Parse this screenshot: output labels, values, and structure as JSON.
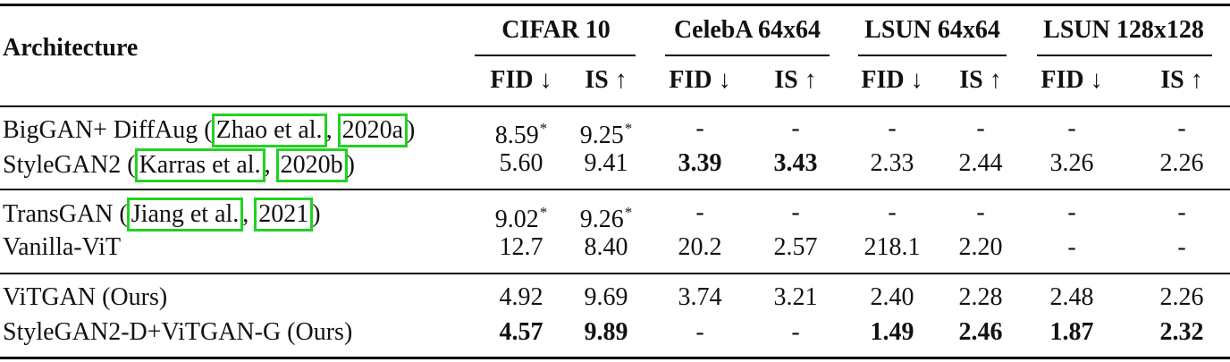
{
  "header": {
    "architecture": "Architecture",
    "groups": [
      "CIFAR 10",
      "CelebA 64x64",
      "LSUN 64x64",
      "LSUN 128x128"
    ],
    "metrics": [
      "FID ↓",
      "IS ↑",
      "FID ↓",
      "IS ↑",
      "FID ↓",
      "IS ↑",
      "FID ↓",
      "IS ↑"
    ]
  },
  "rows": [
    {
      "name_pre": "BigGAN+ DiffAug (",
      "cite_authors": "Zhao et al.",
      "cite_sep": ", ",
      "cite_year": "2020a",
      "name_post": ")",
      "values": [
        "8.59",
        "9.25",
        "-",
        "-",
        "-",
        "-",
        "-",
        "-"
      ],
      "marks": [
        "*",
        "*",
        "",
        "",
        "",
        "",
        "",
        ""
      ],
      "bold": [
        false,
        false,
        false,
        false,
        false,
        false,
        false,
        false
      ]
    },
    {
      "name_pre": "StyleGAN2 (",
      "cite_authors": "Karras et al.",
      "cite_sep": ", ",
      "cite_year": "2020b",
      "name_post": ")",
      "values": [
        "5.60",
        "9.41",
        "3.39",
        "3.43",
        "2.33",
        "2.44",
        "3.26",
        "2.26"
      ],
      "marks": [
        "",
        "",
        "",
        "",
        "",
        "",
        "",
        ""
      ],
      "bold": [
        false,
        false,
        true,
        true,
        false,
        false,
        false,
        false
      ]
    },
    {
      "name_pre": "TransGAN (",
      "cite_authors": "Jiang et al.",
      "cite_sep": ", ",
      "cite_year": "2021",
      "name_post": ")",
      "values": [
        "9.02",
        "9.26",
        "-",
        "-",
        "-",
        "-",
        "-",
        "-"
      ],
      "marks": [
        "*",
        "*",
        "",
        "",
        "",
        "",
        "",
        ""
      ],
      "bold": [
        false,
        false,
        false,
        false,
        false,
        false,
        false,
        false
      ]
    },
    {
      "name": "Vanilla-ViT",
      "values": [
        "12.7",
        "8.40",
        "20.2",
        "2.57",
        "218.1",
        "2.20",
        "-",
        "-"
      ],
      "marks": [
        "",
        "",
        "",
        "",
        "",
        "",
        "",
        ""
      ],
      "bold": [
        false,
        false,
        false,
        false,
        false,
        false,
        false,
        false
      ]
    },
    {
      "name": "ViTGAN (Ours)",
      "values": [
        "4.92",
        "9.69",
        "3.74",
        "3.21",
        "2.40",
        "2.28",
        "2.48",
        "2.26"
      ],
      "marks": [
        "",
        "",
        "",
        "",
        "",
        "",
        "",
        ""
      ],
      "bold": [
        false,
        false,
        false,
        false,
        false,
        false,
        false,
        false
      ]
    },
    {
      "name": "StyleGAN2-D+ViTGAN-G (Ours)",
      "values": [
        "4.57",
        "9.89",
        "-",
        "-",
        "1.49",
        "2.46",
        "1.87",
        "2.32"
      ],
      "marks": [
        "",
        "",
        "",
        "",
        "",
        "",
        "",
        ""
      ],
      "bold": [
        true,
        true,
        false,
        false,
        true,
        true,
        true,
        true
      ]
    }
  ]
}
